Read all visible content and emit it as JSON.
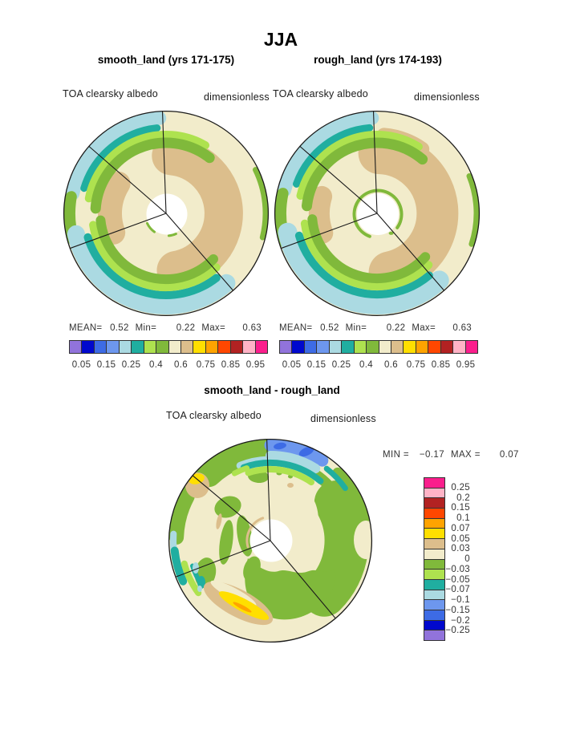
{
  "title": "JJA",
  "palette": [
    "#9173DB",
    "#0008CD",
    "#3D6BE5",
    "#6D97EE",
    "#ABDAE2",
    "#20AEA0",
    "#AEE24F",
    "#80B93B",
    "#F2ECCB",
    "#DCBE8C",
    "#FFDF00",
    "#FFA300",
    "#FF4700",
    "#B22222",
    "#FFB3C6",
    "#FA1E8C"
  ],
  "panels": {
    "smooth": {
      "title": "smooth_land (yrs 171-175)",
      "var_label": "TOA clearsky albedo",
      "units": "dimensionless",
      "stats": {
        "mean_label": "MEAN=",
        "mean": "0.52",
        "min_label": "Min=",
        "min": "0.22",
        "max_label": "Max=",
        "max": "0.63"
      },
      "colorbar_ticks": [
        "0.05",
        "0.15",
        "0.25",
        "0.4",
        "0.6",
        "0.75",
        "0.85",
        "0.95"
      ]
    },
    "rough": {
      "title": "rough_land (yrs 174-193)",
      "var_label": "TOA clearsky albedo",
      "units": "dimensionless",
      "stats": {
        "mean_label": "MEAN=",
        "mean": "0.52",
        "min_label": "Min=",
        "min": "0.22",
        "max_label": "Max=",
        "max": "0.63"
      },
      "colorbar_ticks": [
        "0.05",
        "0.15",
        "0.25",
        "0.4",
        "0.6",
        "0.75",
        "0.85",
        "0.95"
      ]
    },
    "diff": {
      "title": "smooth_land - rough_land",
      "var_label": "TOA clearsky albedo",
      "units": "dimensionless",
      "stats": {
        "min_label": "MIN =",
        "min": "−0.17",
        "max_label": "MAX =",
        "max": "0.07"
      },
      "colorbar_ticks": [
        "0.25",
        "0.2",
        "0.15",
        "0.1",
        "0.07",
        "0.05",
        "0.03",
        "0",
        "−0.03",
        "−0.05",
        "−0.07",
        "−0.1",
        "−0.15",
        "−0.2",
        "−0.25"
      ]
    }
  },
  "chart_data": {
    "type": "heatmap",
    "subtype": "polar_contour_map_comparison",
    "season": "JJA",
    "variable": "TOA clearsky albedo",
    "units": "dimensionless",
    "panels": [
      {
        "name": "smooth_land",
        "years": "171-175",
        "mean": 0.52,
        "min": 0.22,
        "max": 0.63,
        "contour_levels": [
          0.05,
          0.1,
          0.15,
          0.2,
          0.25,
          0.3,
          0.4,
          0.5,
          0.6,
          0.7,
          0.75,
          0.8,
          0.85,
          0.9,
          0.95
        ],
        "labeled_levels": [
          0.05,
          0.15,
          0.25,
          0.4,
          0.6,
          0.75,
          0.85,
          0.95
        ]
      },
      {
        "name": "rough_land",
        "years": "174-193",
        "mean": 0.52,
        "min": 0.22,
        "max": 0.63,
        "contour_levels": [
          0.05,
          0.1,
          0.15,
          0.2,
          0.25,
          0.3,
          0.4,
          0.5,
          0.6,
          0.7,
          0.75,
          0.8,
          0.85,
          0.9,
          0.95
        ],
        "labeled_levels": [
          0.05,
          0.15,
          0.25,
          0.4,
          0.6,
          0.75,
          0.85,
          0.95
        ]
      },
      {
        "name": "smooth_land - rough_land",
        "min": -0.17,
        "max": 0.07,
        "contour_levels": [
          -0.25,
          -0.2,
          -0.15,
          -0.1,
          -0.07,
          -0.05,
          -0.03,
          0,
          0.03,
          0.05,
          0.07,
          0.1,
          0.15,
          0.2,
          0.25
        ]
      }
    ],
    "palette_low_to_high": [
      "#9173DB",
      "#0008CD",
      "#3D6BE5",
      "#6D97EE",
      "#ABDAE2",
      "#20AEA0",
      "#AEE24F",
      "#80B93B",
      "#F2ECCB",
      "#DCBE8C",
      "#FFDF00",
      "#FFA300",
      "#FF4700",
      "#B22222",
      "#FFB3C6",
      "#FA1E8C"
    ],
    "legend_position": {
      "top_panels": "below",
      "diff_panel": "right"
    },
    "grid": false
  }
}
